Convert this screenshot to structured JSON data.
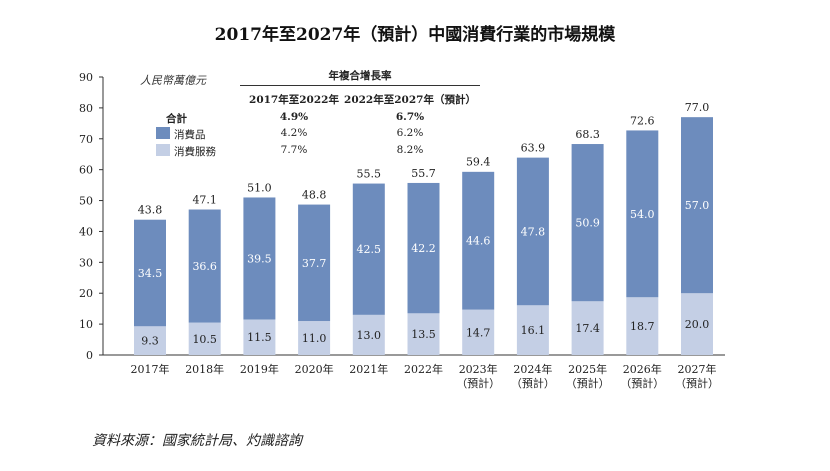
{
  "chart_data": {
    "type": "bar",
    "stacked": true,
    "title": "2017年至2027年（預計）中國消費行業的市場規模",
    "ylabel": "人民幣萬億元",
    "ylim": [
      0,
      90
    ],
    "yticks": [
      0,
      10,
      20,
      30,
      40,
      50,
      60,
      70,
      80,
      90
    ],
    "categories": [
      "2017年",
      "2018年",
      "2019年",
      "2020年",
      "2021年",
      "2022年",
      "2023年\n（預計）",
      "2024年\n（預計）",
      "2025年\n（預計）",
      "2026年\n（預計）",
      "2027年\n（預計）"
    ],
    "series": [
      {
        "name": "消費服務",
        "color": "#c4cfe5",
        "values": [
          9.3,
          10.5,
          11.5,
          11.0,
          13.0,
          13.5,
          14.7,
          16.1,
          17.4,
          18.7,
          20.0
        ]
      },
      {
        "name": "消費品",
        "color": "#6d8cbd",
        "values": [
          34.5,
          36.6,
          39.5,
          37.7,
          42.5,
          42.2,
          44.6,
          47.8,
          50.9,
          54.0,
          57.0
        ]
      }
    ],
    "totals": [
      43.8,
      47.1,
      51.0,
      48.8,
      55.5,
      55.7,
      59.4,
      63.9,
      68.3,
      72.6,
      77.0
    ],
    "legend_table": {
      "header": "年複合增長率",
      "columns": [
        "2017年至2022年",
        "2022年至2027年（預計）"
      ],
      "rows": [
        {
          "label": "合計",
          "values": [
            "4.9%",
            "6.7%"
          ]
        },
        {
          "label": "消費品",
          "values": [
            "4.2%",
            "6.2%"
          ]
        },
        {
          "label": "消費服務",
          "values": [
            "7.7%",
            "8.2%"
          ]
        }
      ]
    },
    "source": "資料來源：國家統計局、灼識諮詢"
  }
}
